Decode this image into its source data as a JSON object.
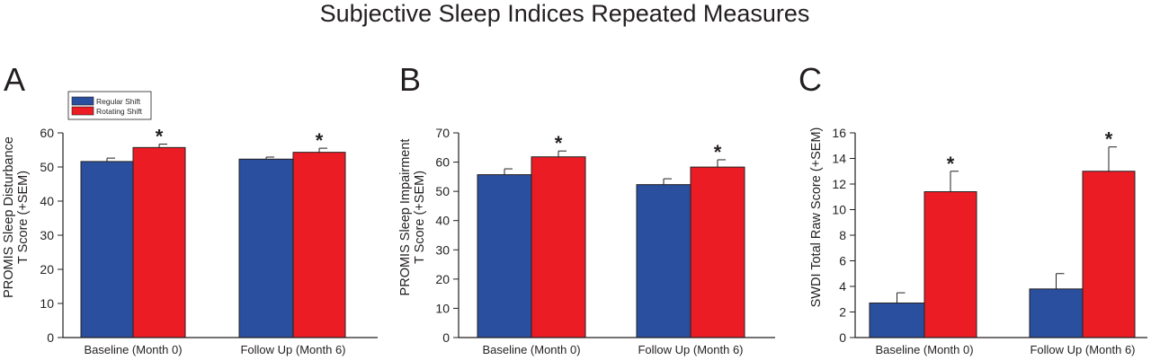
{
  "title": "Subjective Sleep Indices Repeated Measures",
  "legend": {
    "items": [
      {
        "label": "Regular Shift",
        "color": "#2a4f9e"
      },
      {
        "label": "Rotating Shift",
        "color": "#ec1c24"
      }
    ]
  },
  "colors": {
    "regular": "#2a4f9e",
    "rotating": "#ec1c24",
    "axis": "#231f20"
  },
  "significance_marker": "*",
  "chart_data": [
    {
      "type": "bar",
      "panel": "A",
      "ylabel": "PROMIS Sleep Disturbance T Score (+SEM)",
      "ylabel_lines": [
        "PROMIS Sleep Disturbance",
        "T Score (+SEM)"
      ],
      "categories": [
        "Baseline (Month 0)",
        "Follow Up (Month 6)"
      ],
      "ylim": [
        0,
        60
      ],
      "yticks": [
        0,
        10,
        20,
        30,
        40,
        50,
        60
      ],
      "series": [
        {
          "name": "Regular Shift",
          "values": [
            51.6,
            52.3
          ],
          "sem": [
            1.0,
            0.6
          ]
        },
        {
          "name": "Rotating Shift",
          "values": [
            55.7,
            54.3
          ],
          "sem": [
            1.0,
            1.2
          ]
        }
      ],
      "significant": [
        true,
        true
      ]
    },
    {
      "type": "bar",
      "panel": "B",
      "ylabel": "PROMIS Sleep Impairment T Score (+SEM)",
      "ylabel_lines": [
        "PROMIS Sleep Impairment",
        "T Score (+SEM)"
      ],
      "categories": [
        "Baseline (Month 0)",
        "Follow Up (Month 6)"
      ],
      "ylim": [
        0,
        70
      ],
      "yticks": [
        0,
        10,
        20,
        30,
        40,
        50,
        60,
        70
      ],
      "series": [
        {
          "name": "Regular Shift",
          "values": [
            55.7,
            52.3
          ],
          "sem": [
            2.0,
            2.0
          ]
        },
        {
          "name": "Rotating Shift",
          "values": [
            61.8,
            58.3
          ],
          "sem": [
            2.0,
            2.5
          ]
        }
      ],
      "significant": [
        true,
        true
      ]
    },
    {
      "type": "bar",
      "panel": "C",
      "ylabel": "SWDI Total Raw Score (+SEM)",
      "ylabel_lines": [
        "SWDI Total Raw Score (+SEM)"
      ],
      "categories": [
        "Baseline (Month 0)",
        "Follow Up (Month 6)"
      ],
      "ylim": [
        0,
        16
      ],
      "yticks": [
        0,
        2,
        4,
        6,
        8,
        10,
        12,
        14,
        16
      ],
      "series": [
        {
          "name": "Regular Shift",
          "values": [
            2.7,
            3.8
          ],
          "sem": [
            0.8,
            1.2
          ]
        },
        {
          "name": "Rotating Shift",
          "values": [
            11.4,
            13.0
          ],
          "sem": [
            1.6,
            1.9
          ]
        }
      ],
      "significant": [
        true,
        true
      ]
    }
  ]
}
